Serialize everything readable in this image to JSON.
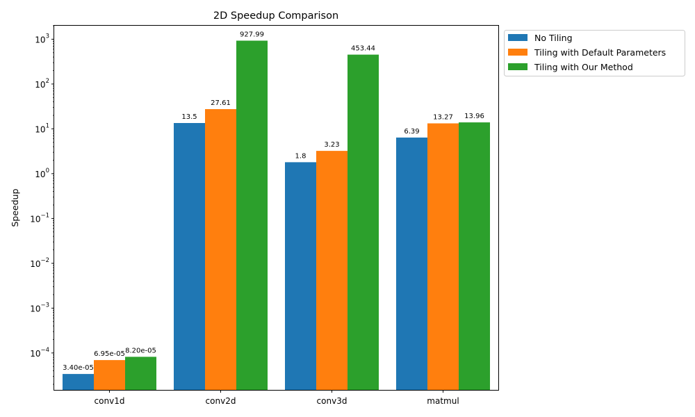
{
  "chart_data": {
    "type": "bar",
    "title": "2D Speedup Comparison",
    "xlabel": "",
    "ylabel": "Speedup",
    "yscale": "log",
    "ylim": [
      1.5e-05,
      2000
    ],
    "ytick_values": [
      0.0001,
      0.001,
      0.01,
      0.1,
      1,
      10,
      100,
      1000
    ],
    "ytick_labels": [
      {
        "base": "10",
        "exp": "−4"
      },
      {
        "base": "10",
        "exp": "−3"
      },
      {
        "base": "10",
        "exp": "−2"
      },
      {
        "base": "10",
        "exp": "−1"
      },
      {
        "base": "10",
        "exp": "0"
      },
      {
        "base": "10",
        "exp": "1"
      },
      {
        "base": "10",
        "exp": "2"
      },
      {
        "base": "10",
        "exp": "3"
      }
    ],
    "categories": [
      "conv1d",
      "conv2d",
      "conv3d",
      "matmul"
    ],
    "series": [
      {
        "name": "No Tiling",
        "color": "#1f77b4",
        "values": [
          3.4e-05,
          13.5,
          1.8,
          6.39
        ],
        "labels": [
          "3.40e-05",
          "13.5",
          "1.8",
          "6.39"
        ]
      },
      {
        "name": "Tiling with Default Parameters",
        "color": "#ff7f0e",
        "values": [
          6.95e-05,
          27.61,
          3.23,
          13.27
        ],
        "labels": [
          "6.95e-05",
          "27.61",
          "3.23",
          "13.27"
        ]
      },
      {
        "name": "Tiling with Our Method",
        "color": "#2ca02c",
        "values": [
          8.2e-05,
          927.99,
          453.44,
          13.96
        ],
        "labels": [
          "8.20e-05",
          "927.99",
          "453.44",
          "13.96"
        ]
      }
    ],
    "legend_position": "outside-top-right",
    "grid": false
  }
}
